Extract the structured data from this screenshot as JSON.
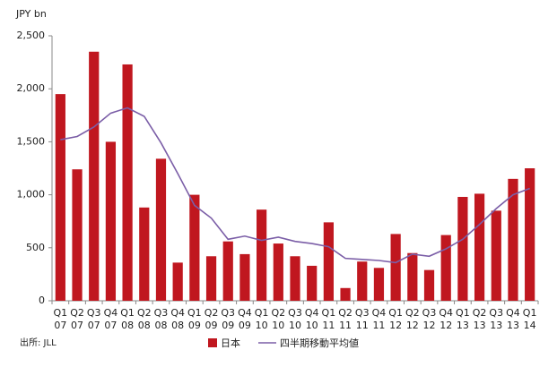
{
  "chart_data": {
    "type": "bar-line",
    "y_label": "JPY bn",
    "source": "出所: JLL",
    "categories": [
      "Q1 07",
      "Q2 07",
      "Q3 07",
      "Q4 07",
      "Q1 08",
      "Q2 08",
      "Q3 08",
      "Q4 08",
      "Q1 09",
      "Q2 09",
      "Q3 09",
      "Q4 09",
      "Q1 10",
      "Q2 10",
      "Q3 10",
      "Q4 10",
      "Q1 11",
      "Q2 11",
      "Q3 11",
      "Q4 11",
      "Q1 12",
      "Q2 12",
      "Q3 12",
      "Q4 12",
      "Q1 13",
      "Q2 13",
      "Q3 13",
      "Q4 13",
      "Q1 14"
    ],
    "series": [
      {
        "name": "日本",
        "type": "bar",
        "color": "#c0171f",
        "values": [
          1950,
          1240,
          2350,
          1500,
          2230,
          880,
          1340,
          360,
          1000,
          420,
          560,
          440,
          860,
          540,
          420,
          330,
          740,
          120,
          370,
          310,
          630,
          450,
          290,
          620,
          980,
          1010,
          850,
          1150,
          1250
        ]
      },
      {
        "name": "四半期移動平均値",
        "type": "line",
        "color": "#7b5ea7",
        "values": [
          1520,
          1550,
          1640,
          1770,
          1820,
          1740,
          1490,
          1200,
          900,
          780,
          580,
          610,
          570,
          600,
          560,
          540,
          510,
          400,
          390,
          380,
          360,
          440,
          420,
          490,
          580,
          720,
          870,
          1000,
          1060
        ]
      }
    ],
    "ylim": [
      0,
      2500
    ],
    "yticks": [
      0,
      500,
      {
        "value": 1000,
        "label": "1,000"
      },
      {
        "value": 1500,
        "label": "1,500"
      },
      {
        "value": 2000,
        "label": "2,000"
      },
      {
        "value": 2500,
        "label": "2,500"
      }
    ],
    "grid": false
  }
}
